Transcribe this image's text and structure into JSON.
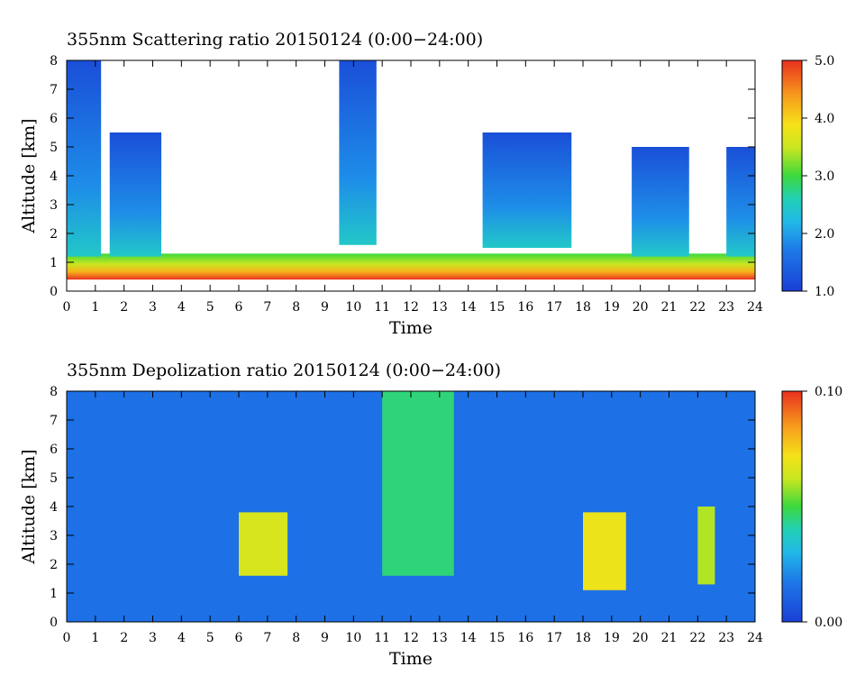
{
  "chart_data": [
    {
      "type": "heatmap",
      "title": "355nm Scattering ratio  20150124 (0:00−24:00)",
      "xlabel": "Time",
      "ylabel": "Altitude [km]",
      "xlim": [
        0,
        24
      ],
      "ylim": [
        0,
        8
      ],
      "x_ticks": [
        "0",
        "1",
        "2",
        "3",
        "4",
        "5",
        "6",
        "7",
        "8",
        "9",
        "10",
        "11",
        "12",
        "13",
        "14",
        "15",
        "16",
        "17",
        "18",
        "19",
        "20",
        "21",
        "22",
        "23",
        "24"
      ],
      "y_ticks": [
        "0",
        "1",
        "2",
        "3",
        "4",
        "5",
        "6",
        "7",
        "8"
      ],
      "colorbar": {
        "min": 1.0,
        "max": 5.0,
        "labels": [
          "1.0",
          "2.0",
          "3.0",
          "4.0",
          "5.0"
        ],
        "colormap": "rainbow-jet"
      },
      "features": [
        {
          "kind": "boundary_layer",
          "from_hour": 0,
          "to_hour": 24,
          "base_km": 0.4,
          "top_km": 1.3,
          "value": 4.5
        },
        {
          "kind": "cloud_column",
          "from_hour": 0.0,
          "to_hour": 1.2,
          "base_km": 1.2,
          "top_km": 8.0,
          "value": 1.5
        },
        {
          "kind": "cloud_column",
          "from_hour": 1.5,
          "to_hour": 3.3,
          "base_km": 1.2,
          "top_km": 5.5,
          "value": 1.4
        },
        {
          "kind": "cloud_column",
          "from_hour": 9.5,
          "to_hour": 10.8,
          "base_km": 1.6,
          "top_km": 8.0,
          "value": 1.3
        },
        {
          "kind": "cloud_column",
          "from_hour": 14.5,
          "to_hour": 17.6,
          "base_km": 1.5,
          "top_km": 5.5,
          "value": 1.3
        },
        {
          "kind": "cloud_column",
          "from_hour": 19.7,
          "to_hour": 21.7,
          "base_km": 1.2,
          "top_km": 5.0,
          "value": 1.5
        },
        {
          "kind": "cloud_column",
          "from_hour": 23.0,
          "to_hour": 24.0,
          "base_km": 1.2,
          "top_km": 5.0,
          "value": 1.4
        }
      ]
    },
    {
      "type": "heatmap",
      "title": "355nm Depolization ratio  20150124 (0:00−24:00)",
      "xlabel": "Time",
      "ylabel": "Altitude [km]",
      "xlim": [
        0,
        24
      ],
      "ylim": [
        0,
        8
      ],
      "x_ticks": [
        "0",
        "1",
        "2",
        "3",
        "4",
        "5",
        "6",
        "7",
        "8",
        "9",
        "10",
        "11",
        "12",
        "13",
        "14",
        "15",
        "16",
        "17",
        "18",
        "19",
        "20",
        "21",
        "22",
        "23",
        "24"
      ],
      "y_ticks": [
        "0",
        "1",
        "2",
        "3",
        "4",
        "5",
        "6",
        "7",
        "8"
      ],
      "colorbar": {
        "min": 0.0,
        "max": 0.1,
        "labels": [
          "0.00",
          "0.10"
        ],
        "colormap": "rainbow-jet"
      },
      "features": [
        {
          "kind": "background",
          "from_hour": 0,
          "to_hour": 24,
          "base_km": 0,
          "top_km": 8,
          "value": 0.015
        },
        {
          "kind": "aerosol_layer",
          "from_hour": 6.0,
          "to_hour": 7.7,
          "base_km": 1.6,
          "top_km": 3.8,
          "value": 0.065
        },
        {
          "kind": "aerosol_layer",
          "from_hour": 11.0,
          "to_hour": 13.5,
          "base_km": 1.6,
          "top_km": 8.0,
          "value": 0.045
        },
        {
          "kind": "aerosol_layer",
          "from_hour": 18.0,
          "to_hour": 19.5,
          "base_km": 1.1,
          "top_km": 3.8,
          "value": 0.07
        },
        {
          "kind": "aerosol_layer",
          "from_hour": 22.0,
          "to_hour": 22.6,
          "base_km": 1.3,
          "top_km": 4.0,
          "value": 0.06
        }
      ]
    }
  ]
}
